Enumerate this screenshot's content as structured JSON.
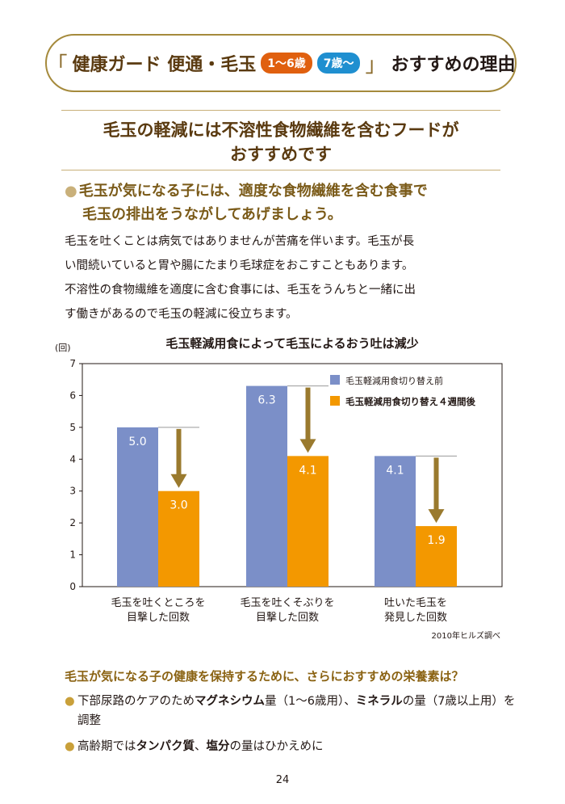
{
  "header": {
    "open_bracket": "「",
    "product_name": "健康ガード 便通・毛玉",
    "badge_age_1": "1〜6歳",
    "badge_age_2": "7歳〜",
    "close_bracket": "」",
    "suffix": "おすすめの理由"
  },
  "headline": {
    "line1": "毛玉の軽減には不溶性食物繊維を含むフードが",
    "line2": "おすすめです"
  },
  "bullet": {
    "marker": "●",
    "line1": "毛玉が気になる子には、適度な食物繊維を含む食事で",
    "line2": "毛玉の排出をうながしてあげましょう。"
  },
  "body": {
    "line1": "毛玉を吐くことは病気ではありませんが苦痛を伴います。毛玉が長",
    "line2": "い間続いていると胃や腸にたまり毛球症をおこすこともあります。",
    "line3": "不溶性の食物繊維を適度に含む食事には、毛玉をうんちと一緒に出",
    "line4": "す働きがあるので毛玉の軽減に役立ちます。"
  },
  "chart_data": {
    "type": "bar",
    "title": "毛玉軽減用食によって毛玉によるおう吐は減少",
    "ylabel": "(回)",
    "ylim": [
      0,
      7
    ],
    "yticks": [
      "0",
      "1",
      "2",
      "3",
      "4",
      "5",
      "6",
      "7"
    ],
    "categories": [
      [
        "毛玉を吐くところを",
        "目撃した回数"
      ],
      [
        "毛玉を吐くそぶりを",
        "目撃した回数"
      ],
      [
        "吐いた毛玉を",
        "発見した回数"
      ]
    ],
    "series": [
      {
        "name": "毛玉軽減用食切り替え前",
        "values": [
          5.0,
          6.3,
          4.1
        ],
        "labels": [
          "5.0",
          "6.3",
          "4.1"
        ],
        "color": "#7b8fc8"
      },
      {
        "name": "毛玉軽減用食切り替え４週間後",
        "values": [
          3.0,
          4.1,
          1.9
        ],
        "labels": [
          "3.0",
          "4.1",
          "1.9"
        ],
        "color": "#f39800"
      }
    ],
    "arrow_color": "#9a7a2e",
    "grid": false,
    "legend": "top-right",
    "source": "2010年ヒルズ調べ"
  },
  "nutrition": {
    "title": "毛玉が気になる子の健康を保持するために、さらにおすすめの栄養素は？",
    "marker": "●",
    "item1": {
      "pre": "下部尿路のケアのため",
      "bold1": "マグネシウム",
      "mid": "量（1〜6歳用）、",
      "bold2": "ミネラル",
      "post": "の量（7歳以上用）を調整"
    },
    "item2": {
      "pre": "高齢期では",
      "bold1": "タンパク質",
      "mid": "、",
      "bold2": "塩分",
      "post": "の量はひかえめに"
    }
  },
  "page_number": "24"
}
